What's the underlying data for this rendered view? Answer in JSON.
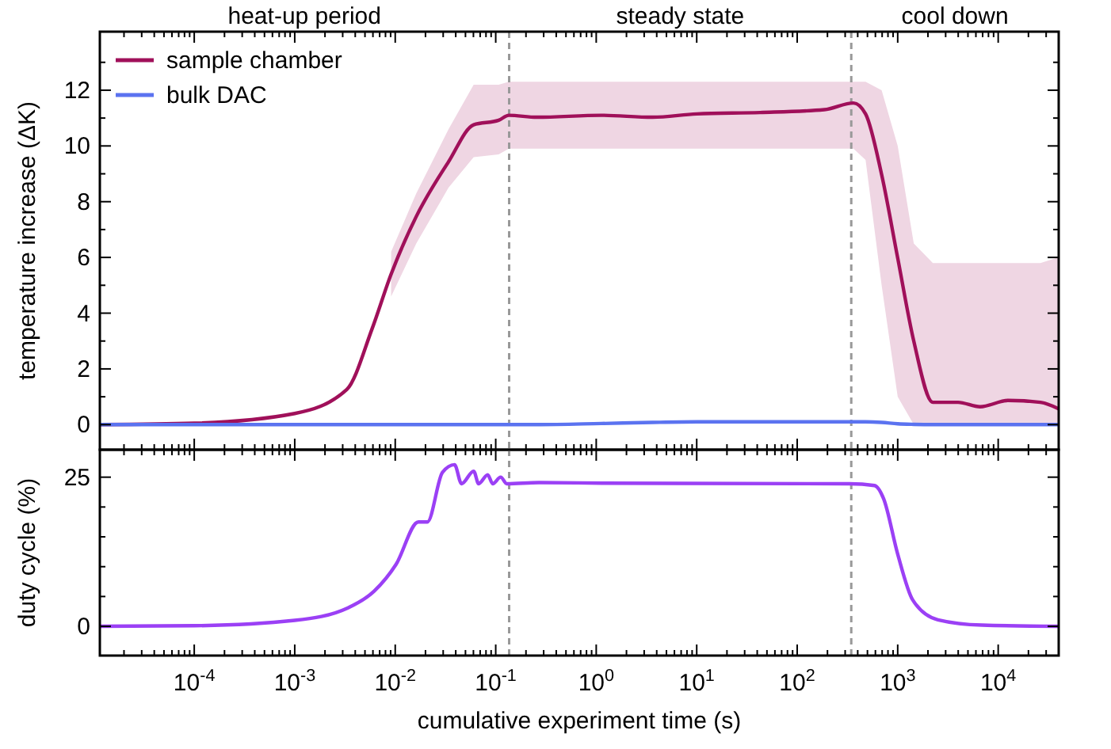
{
  "chart_data": [
    {
      "type": "line",
      "ylabel": "temperature increase (ΔK)",
      "annotations": [
        "heat-up period",
        "steady state",
        "cool down"
      ],
      "legend": "top left",
      "tick_labels": "y",
      "log": "x",
      "xlim": [
        1.15e-05,
        40000
      ],
      "ylim": [
        -0.9,
        14.1
      ],
      "xticks": [
        {
          "value": 2e-05,
          "label": null
        },
        {
          "value": 3e-05,
          "label": null
        },
        {
          "value": 4e-05,
          "label": null
        },
        {
          "value": 5e-05,
          "label": null
        },
        {
          "value": 6e-05,
          "label": null
        },
        {
          "value": 7e-05,
          "label": null
        },
        {
          "value": 8e-05,
          "label": null
        },
        {
          "value": 9e-05,
          "label": null
        },
        {
          "value": 0.0001,
          "label": null
        },
        {
          "value": 0.0002,
          "label": null
        },
        {
          "value": 0.0003,
          "label": null
        },
        {
          "value": 0.0004,
          "label": null
        },
        {
          "value": 0.0005,
          "label": null
        },
        {
          "value": 0.0006,
          "label": null
        },
        {
          "value": 0.0007,
          "label": null
        },
        {
          "value": 0.0008,
          "label": null
        },
        {
          "value": 0.0009,
          "label": null
        },
        {
          "value": 0.001,
          "label": null
        },
        {
          "value": 0.002,
          "label": null
        },
        {
          "value": 0.003,
          "label": null
        },
        {
          "value": 0.004,
          "label": null
        },
        {
          "value": 0.005,
          "label": null
        },
        {
          "value": 0.006,
          "label": null
        },
        {
          "value": 0.007,
          "label": null
        },
        {
          "value": 0.008,
          "label": null
        },
        {
          "value": 0.009,
          "label": null
        },
        {
          "value": 0.01,
          "label": null
        },
        {
          "value": 0.02,
          "label": null
        },
        {
          "value": 0.03,
          "label": null
        },
        {
          "value": 0.04,
          "label": null
        },
        {
          "value": 0.05,
          "label": null
        },
        {
          "value": 0.06,
          "label": null
        },
        {
          "value": 0.07,
          "label": null
        },
        {
          "value": 0.08,
          "label": null
        },
        {
          "value": 0.09,
          "label": null
        },
        {
          "value": 0.1,
          "label": null
        },
        {
          "value": 0.2,
          "label": null
        },
        {
          "value": 0.3,
          "label": null
        },
        {
          "value": 0.4,
          "label": null
        },
        {
          "value": 0.5,
          "label": null
        },
        {
          "value": 0.6,
          "label": null
        },
        {
          "value": 0.7,
          "label": null
        },
        {
          "value": 0.8,
          "label": null
        },
        {
          "value": 0.9,
          "label": null
        },
        {
          "value": 1,
          "label": null
        },
        {
          "value": 2,
          "label": null
        },
        {
          "value": 3,
          "label": null
        },
        {
          "value": 4,
          "label": null
        },
        {
          "value": 5,
          "label": null
        },
        {
          "value": 6,
          "label": null
        },
        {
          "value": 7,
          "label": null
        },
        {
          "value": 8,
          "label": null
        },
        {
          "value": 9,
          "label": null
        },
        {
          "value": 10,
          "label": null
        },
        {
          "value": 20,
          "label": null
        },
        {
          "value": 30,
          "label": null
        },
        {
          "value": 40,
          "label": null
        },
        {
          "value": 50,
          "label": null
        },
        {
          "value": 60,
          "label": null
        },
        {
          "value": 70,
          "label": null
        },
        {
          "value": 80,
          "label": null
        },
        {
          "value": 90,
          "label": null
        },
        {
          "value": 100,
          "label": null
        },
        {
          "value": 200,
          "label": null
        },
        {
          "value": 300,
          "label": null
        },
        {
          "value": 400,
          "label": null
        },
        {
          "value": 500,
          "label": null
        },
        {
          "value": 600,
          "label": null
        },
        {
          "value": 700,
          "label": null
        },
        {
          "value": 800,
          "label": null
        },
        {
          "value": 900,
          "label": null
        },
        {
          "value": 1000,
          "label": null
        },
        {
          "value": 2000,
          "label": null
        },
        {
          "value": 3000,
          "label": null
        },
        {
          "value": 4000,
          "label": null
        },
        {
          "value": 5000,
          "label": null
        },
        {
          "value": 6000,
          "label": null
        },
        {
          "value": 7000,
          "label": null
        },
        {
          "value": 8000,
          "label": null
        },
        {
          "value": 9000,
          "label": null
        },
        {
          "value": 10000,
          "label": null
        },
        {
          "value": 20000,
          "label": null
        },
        {
          "value": 30000,
          "label": null
        }
      ],
      "yticks": [
        0,
        {
          "value": 1,
          "label": null
        },
        2,
        {
          "value": 3,
          "label": null
        },
        4,
        {
          "value": 5,
          "label": null
        },
        6,
        {
          "value": 7,
          "label": null
        },
        8,
        {
          "value": 9,
          "label": null
        },
        10,
        {
          "value": 11,
          "label": null
        },
        12,
        {
          "value": 13,
          "label": null
        }
      ],
      "ref_lines": [
        {
          "axis": "x",
          "value": 0.136,
          "label": null,
          "color": "#999999",
          "line_style": "dashed"
        },
        {
          "axis": "x",
          "value": 345,
          "label": null,
          "color": "#999999",
          "line_style": "dashed"
        }
      ],
      "x": [
        1.15e-05,
        0.0001,
        0.001,
        0.0033,
        0.0059,
        0.0091,
        0.0162,
        0.0339,
        0.0603,
        0.107,
        0.135,
        0.257,
        1.12,
        3.63,
        10,
        42.7,
        186,
        363,
        479,
        692,
        1000,
        1445,
        2239,
        3981,
        6607,
        12590,
        26300,
        39800
      ],
      "series": [
        {
          "name": "sample chamber",
          "color": "#a0105a",
          "values": [
            0,
            0.05,
            0.4,
            1.26,
            3.45,
            5.4,
            7.47,
            9.43,
            10.76,
            10.92,
            11.1,
            11.03,
            11.1,
            11.03,
            11.15,
            11.2,
            11.3,
            11.54,
            11.15,
            8.97,
            5.98,
            3.0,
            0.8,
            0.8,
            0.64,
            0.87,
            0.8,
            0.57
          ],
          "lower": [
            null,
            null,
            null,
            null,
            null,
            4.6,
            6.5,
            8.5,
            9.6,
            9.7,
            9.9,
            9.9,
            9.9,
            9.9,
            9.9,
            9.9,
            9.9,
            9.9,
            9.5,
            5,
            1,
            0,
            0,
            0,
            0,
            0,
            0,
            0
          ],
          "upper": [
            null,
            null,
            null,
            null,
            null,
            6.2,
            8.3,
            10.6,
            12.2,
            12.2,
            12.3,
            12.3,
            12.3,
            12.3,
            12.3,
            12.3,
            12.3,
            12.3,
            12.3,
            12,
            10,
            6.5,
            5.8,
            5.8,
            5.8,
            5.8,
            5.8,
            6
          ]
        },
        {
          "name": "bulk DAC",
          "color": "#5b73f0",
          "values": [
            0,
            0,
            0,
            0,
            0,
            0,
            0,
            0,
            0,
            0,
            0,
            0,
            0.04,
            0.08,
            0.1,
            0.1,
            0.1,
            0.1,
            0.1,
            0.08,
            0.03,
            0.01,
            0,
            0,
            0,
            0,
            0,
            0
          ]
        }
      ]
    },
    {
      "type": "line",
      "ylabel": "duty cycle (%)",
      "xlabel": "cumulative experiment time (s)",
      "log": "x",
      "xlim": [
        1.15e-05,
        40000
      ],
      "ylim": [
        -4.9,
        29.6
      ],
      "xticks": [
        {
          "value": 2e-05,
          "label": null
        },
        {
          "value": 3e-05,
          "label": null
        },
        {
          "value": 4e-05,
          "label": null
        },
        {
          "value": 5e-05,
          "label": null
        },
        {
          "value": 6e-05,
          "label": null
        },
        {
          "value": 7e-05,
          "label": null
        },
        {
          "value": 8e-05,
          "label": null
        },
        {
          "value": 9e-05,
          "label": null
        },
        {
          "value": 0.0001,
          "label": "10$^{-4}$"
        },
        {
          "value": 0.0002,
          "label": null
        },
        {
          "value": 0.0003,
          "label": null
        },
        {
          "value": 0.0004,
          "label": null
        },
        {
          "value": 0.0005,
          "label": null
        },
        {
          "value": 0.0006,
          "label": null
        },
        {
          "value": 0.0007,
          "label": null
        },
        {
          "value": 0.0008,
          "label": null
        },
        {
          "value": 0.0009,
          "label": null
        },
        {
          "value": 0.001,
          "label": "10$^{-3}$"
        },
        {
          "value": 0.002,
          "label": null
        },
        {
          "value": 0.003,
          "label": null
        },
        {
          "value": 0.004,
          "label": null
        },
        {
          "value": 0.005,
          "label": null
        },
        {
          "value": 0.006,
          "label": null
        },
        {
          "value": 0.007,
          "label": null
        },
        {
          "value": 0.008,
          "label": null
        },
        {
          "value": 0.009,
          "label": null
        },
        {
          "value": 0.01,
          "label": "10$^{-2}$"
        },
        {
          "value": 0.02,
          "label": null
        },
        {
          "value": 0.03,
          "label": null
        },
        {
          "value": 0.04,
          "label": null
        },
        {
          "value": 0.05,
          "label": null
        },
        {
          "value": 0.06,
          "label": null
        },
        {
          "value": 0.07,
          "label": null
        },
        {
          "value": 0.08,
          "label": null
        },
        {
          "value": 0.09,
          "label": null
        },
        {
          "value": 0.1,
          "label": "10$^{-1}$"
        },
        {
          "value": 0.2,
          "label": null
        },
        {
          "value": 0.3,
          "label": null
        },
        {
          "value": 0.4,
          "label": null
        },
        {
          "value": 0.5,
          "label": null
        },
        {
          "value": 0.6,
          "label": null
        },
        {
          "value": 0.7,
          "label": null
        },
        {
          "value": 0.8,
          "label": null
        },
        {
          "value": 0.9,
          "label": null
        },
        {
          "value": 1,
          "label": "10$^{0}$"
        },
        {
          "value": 2,
          "label": null
        },
        {
          "value": 3,
          "label": null
        },
        {
          "value": 4,
          "label": null
        },
        {
          "value": 5,
          "label": null
        },
        {
          "value": 6,
          "label": null
        },
        {
          "value": 7,
          "label": null
        },
        {
          "value": 8,
          "label": null
        },
        {
          "value": 9,
          "label": null
        },
        {
          "value": 10,
          "label": "10$^{1}$"
        },
        {
          "value": 20,
          "label": null
        },
        {
          "value": 30,
          "label": null
        },
        {
          "value": 40,
          "label": null
        },
        {
          "value": 50,
          "label": null
        },
        {
          "value": 60,
          "label": null
        },
        {
          "value": 70,
          "label": null
        },
        {
          "value": 80,
          "label": null
        },
        {
          "value": 90,
          "label": null
        },
        {
          "value": 100,
          "label": "10$^{2}$"
        },
        {
          "value": 200,
          "label": null
        },
        {
          "value": 300,
          "label": null
        },
        {
          "value": 400,
          "label": null
        },
        {
          "value": 500,
          "label": null
        },
        {
          "value": 600,
          "label": null
        },
        {
          "value": 700,
          "label": null
        },
        {
          "value": 800,
          "label": null
        },
        {
          "value": 900,
          "label": null
        },
        {
          "value": 1000,
          "label": "10$^{3}$"
        },
        {
          "value": 2000,
          "label": null
        },
        {
          "value": 3000,
          "label": null
        },
        {
          "value": 4000,
          "label": null
        },
        {
          "value": 5000,
          "label": null
        },
        {
          "value": 6000,
          "label": null
        },
        {
          "value": 7000,
          "label": null
        },
        {
          "value": 8000,
          "label": null
        },
        {
          "value": 9000,
          "label": null
        },
        {
          "value": 10000,
          "label": "10$^{4}$"
        },
        {
          "value": 20000,
          "label": null
        },
        {
          "value": 30000,
          "label": null
        }
      ],
      "yticks": [
        0,
        {
          "value": 5,
          "label": null
        },
        {
          "value": 10,
          "label": null
        },
        {
          "value": 15,
          "label": null
        },
        {
          "value": 20,
          "label": null
        },
        25
      ],
      "ref_lines": [
        {
          "axis": "x",
          "value": 0.136,
          "label": null,
          "color": "#999999",
          "line_style": "dashed"
        },
        {
          "axis": "x",
          "value": 345,
          "label": null,
          "color": "#999999",
          "line_style": "dashed"
        }
      ],
      "x": [
        1.15e-05,
        0.0001,
        0.001,
        0.00339,
        0.00617,
        0.0102,
        0.017,
        0.0209,
        0.0295,
        0.0389,
        0.0457,
        0.0603,
        0.0676,
        0.0832,
        0.0933,
        0.112,
        0.129,
        0.269,
        1.15,
        331,
        589,
        724,
        1000,
        1413,
        2512,
        6918,
        39800
      ],
      "series": [
        {
          "color": "#9b40f5",
          "values": [
            0,
            0.1,
            1.0,
            3.1,
            5.9,
            10.4,
            17.5,
            17.5,
            25.8,
            27.1,
            23.9,
            26,
            23.9,
            25.4,
            23.9,
            25,
            23.9,
            24.1,
            24,
            23.9,
            23.6,
            21.4,
            12.1,
            4.4,
            1.1,
            0.2,
            0
          ]
        }
      ]
    }
  ]
}
